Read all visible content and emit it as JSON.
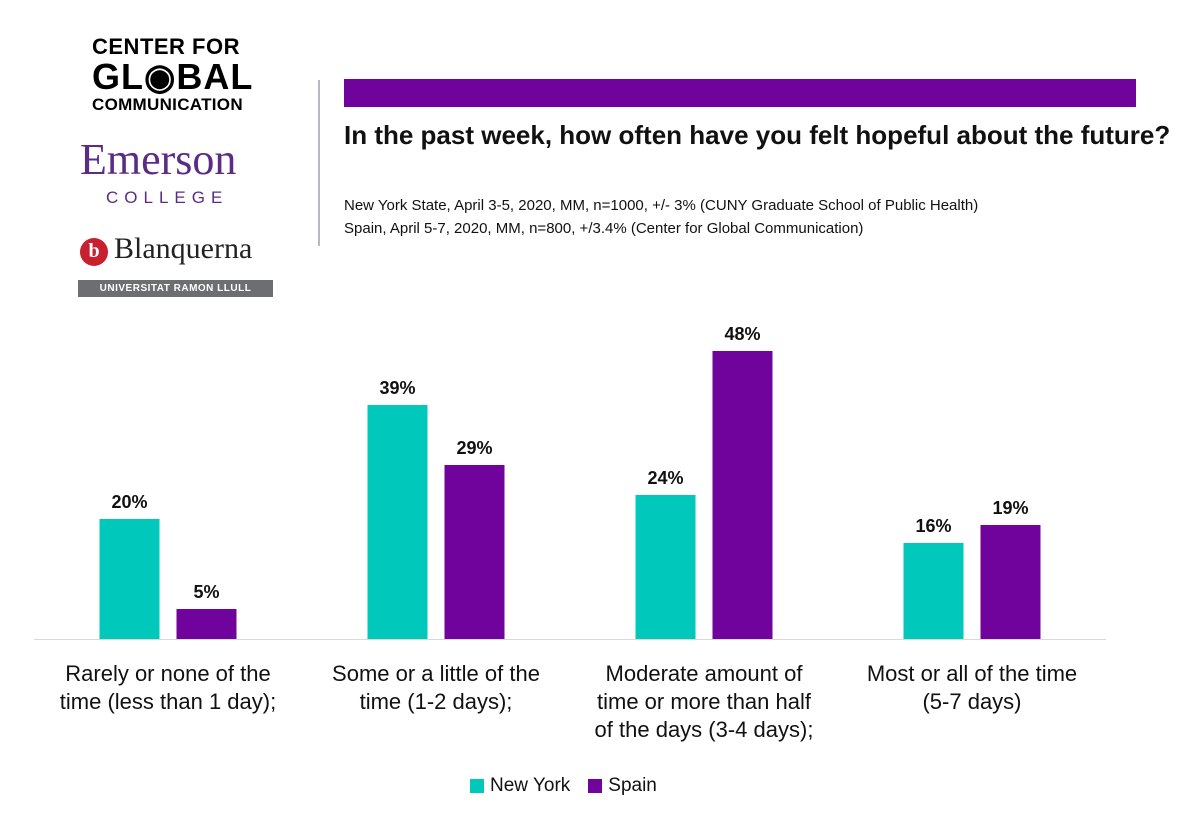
{
  "logos": {
    "cgc": {
      "line1": "CENTER FOR",
      "line2": "GL◉BAL",
      "line3": "COMMUNICATION"
    },
    "emerson": {
      "name": "Emerson",
      "sub": "COLLEGE"
    },
    "blanquerna": {
      "mark": "b",
      "name": "Blanquerna",
      "sub": "UNIVERSITAT RAMON LLULL"
    }
  },
  "header": {
    "title": "In the past week, how often have you felt hopeful about the future?",
    "sub1": "New York State, April 3-5, 2020, MM, n=1000, +/- 3% (CUNY Graduate School of Public Health)",
    "sub2": "Spain, April 5-7, 2020, MM, n=800, +/3.4% (Center for Global Communication)"
  },
  "colors": {
    "accent": "#70039c",
    "new_york": "#00c9bb",
    "spain": "#70039c"
  },
  "chart_data": {
    "type": "bar",
    "title": "In the past week, how often have you felt hopeful about the future?",
    "categories": [
      "Rarely or none of the time (less than 1 day);",
      "Some or a little of the time (1-2 days);",
      "Moderate amount of time or more than half of the days (3-4 days);",
      "Most or all of the time (5-7 days)"
    ],
    "category_lines": [
      [
        "Rarely or none of the",
        "time (less than 1 day);"
      ],
      [
        "Some or a little of the",
        "time (1-2 days);"
      ],
      [
        "Moderate amount of",
        "time or more than half",
        "of the days (3-4 days);"
      ],
      [
        "Most or all of the time",
        "(5-7 days)"
      ]
    ],
    "series": [
      {
        "name": "New York",
        "values": [
          20,
          39,
          24,
          16
        ],
        "labels": [
          "20%",
          "39%",
          "24%",
          "16%"
        ]
      },
      {
        "name": "Spain",
        "values": [
          5,
          29,
          48,
          19
        ],
        "labels": [
          "5%",
          "29%",
          "48%",
          "19%"
        ]
      }
    ],
    "ylim": [
      0,
      50
    ],
    "grid": false,
    "legend": "bottom-center"
  },
  "legend": {
    "new_york": "New York",
    "spain": "Spain"
  }
}
